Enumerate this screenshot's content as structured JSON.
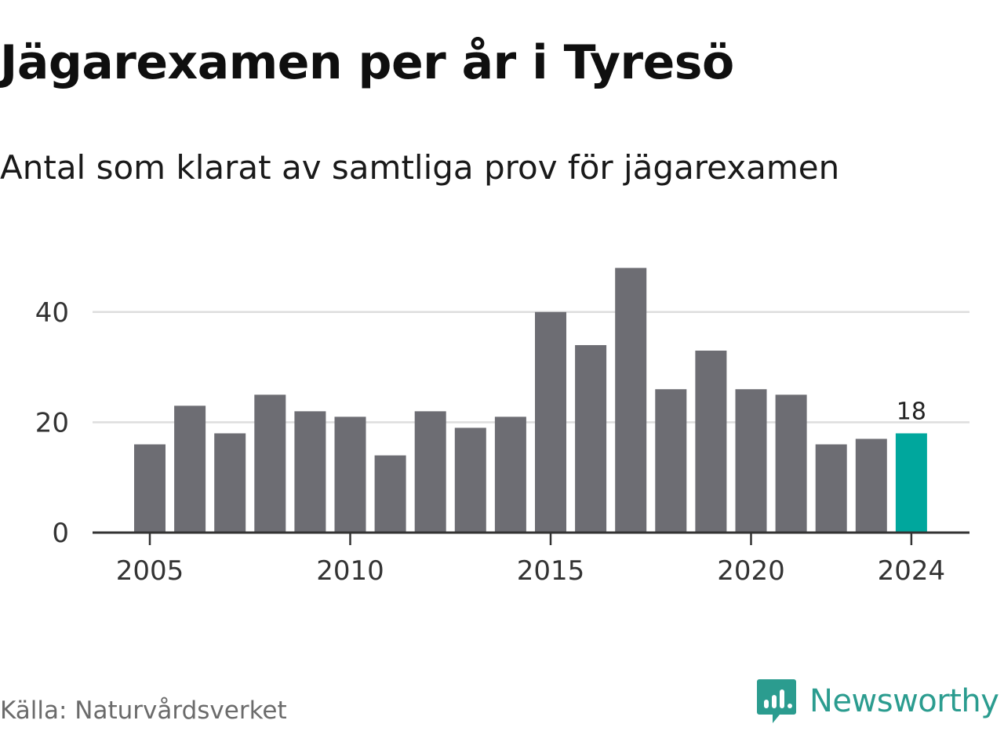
{
  "title": "Jägarexamen per år i Tyresö",
  "subtitle": "Antal som klarat av samtliga prov för jägarexamen",
  "source": "Källa: Naturvårdsverket",
  "brand": {
    "name": "Newsworthy",
    "icon": "newsworthy-logo-icon",
    "color": "#2b9c8f"
  },
  "colors": {
    "bar": "#6d6d73",
    "highlight": "#00a79d",
    "grid": "#dddddd",
    "axis": "#333333",
    "tick_text": "#333333"
  },
  "chart_data": {
    "type": "bar",
    "categories": [
      2005,
      2006,
      2007,
      2008,
      2009,
      2010,
      2011,
      2012,
      2013,
      2014,
      2015,
      2016,
      2017,
      2018,
      2019,
      2020,
      2021,
      2022,
      2023,
      2024
    ],
    "values": [
      16,
      23,
      18,
      25,
      22,
      21,
      14,
      22,
      19,
      21,
      40,
      34,
      48,
      26,
      33,
      26,
      25,
      16,
      17,
      18
    ],
    "highlight_index": 19,
    "data_labels": [
      {
        "index": 19,
        "text": "18"
      }
    ],
    "x_ticks": [
      2005,
      2010,
      2015,
      2020,
      2024
    ],
    "y_ticks": [
      0,
      20,
      40
    ],
    "ylim": [
      0,
      50
    ],
    "grid": true,
    "xlabel": "",
    "ylabel": ""
  }
}
